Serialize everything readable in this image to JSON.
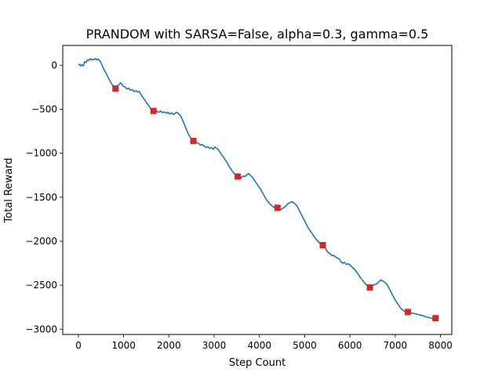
{
  "chart_data": {
    "type": "line",
    "title": "PRANDOM with SARSA=False, alpha=0.3, gamma=0.5",
    "xlabel": "Step Count",
    "ylabel": "Total Reward",
    "xlim": [
      -345,
      8250
    ],
    "ylim": [
      -3060,
      225
    ],
    "xticks": [
      0,
      1000,
      2000,
      3000,
      4000,
      5000,
      6000,
      7000,
      8000
    ],
    "xtick_labels": [
      "0",
      "1000",
      "2000",
      "3000",
      "4000",
      "5000",
      "6000",
      "7000",
      "8000"
    ],
    "yticks": [
      0,
      -500,
      -1000,
      -1500,
      -2000,
      -2500,
      -3000
    ],
    "ytick_labels": [
      "0",
      "−500",
      "−1000",
      "−1500",
      "−2000",
      "−2500",
      "−3000"
    ],
    "grid": false,
    "legend": "none",
    "series": [
      {
        "line_color": "#1f77b4",
        "points": [
          [
            0,
            0
          ],
          [
            40,
            10
          ],
          [
            60,
            -10
          ],
          [
            90,
            5
          ],
          [
            110,
            -5
          ],
          [
            140,
            40
          ],
          [
            170,
            30
          ],
          [
            200,
            60
          ],
          [
            230,
            55
          ],
          [
            260,
            75
          ],
          [
            290,
            60
          ],
          [
            320,
            70
          ],
          [
            350,
            65
          ],
          [
            380,
            75
          ],
          [
            410,
            60
          ],
          [
            440,
            70
          ],
          [
            470,
            50
          ],
          [
            500,
            30
          ],
          [
            540,
            -20
          ],
          [
            580,
            -60
          ],
          [
            620,
            -100
          ],
          [
            660,
            -140
          ],
          [
            700,
            -180
          ],
          [
            740,
            -215
          ],
          [
            780,
            -240
          ],
          [
            810,
            -265
          ],
          [
            840,
            -260
          ],
          [
            870,
            -230
          ],
          [
            900,
            -220
          ],
          [
            930,
            -200
          ],
          [
            960,
            -215
          ],
          [
            990,
            -240
          ],
          [
            1030,
            -245
          ],
          [
            1070,
            -270
          ],
          [
            1110,
            -260
          ],
          [
            1150,
            -285
          ],
          [
            1190,
            -275
          ],
          [
            1230,
            -300
          ],
          [
            1270,
            -290
          ],
          [
            1310,
            -305
          ],
          [
            1350,
            -300
          ],
          [
            1380,
            -330
          ],
          [
            1420,
            -360
          ],
          [
            1460,
            -390
          ],
          [
            1500,
            -420
          ],
          [
            1540,
            -450
          ],
          [
            1580,
            -480
          ],
          [
            1620,
            -505
          ],
          [
            1660,
            -520
          ],
          [
            1700,
            -510
          ],
          [
            1740,
            -525
          ],
          [
            1780,
            -535
          ],
          [
            1820,
            -520
          ],
          [
            1860,
            -540
          ],
          [
            1900,
            -530
          ],
          [
            1940,
            -545
          ],
          [
            1980,
            -535
          ],
          [
            2020,
            -555
          ],
          [
            2060,
            -540
          ],
          [
            2100,
            -560
          ],
          [
            2140,
            -545
          ],
          [
            2180,
            -535
          ],
          [
            2220,
            -555
          ],
          [
            2260,
            -575
          ],
          [
            2300,
            -620
          ],
          [
            2340,
            -670
          ],
          [
            2380,
            -720
          ],
          [
            2420,
            -770
          ],
          [
            2460,
            -810
          ],
          [
            2500,
            -840
          ],
          [
            2540,
            -860
          ],
          [
            2580,
            -870
          ],
          [
            2620,
            -880
          ],
          [
            2660,
            -890
          ],
          [
            2700,
            -910
          ],
          [
            2740,
            -900
          ],
          [
            2780,
            -920
          ],
          [
            2820,
            -935
          ],
          [
            2860,
            -925
          ],
          [
            2900,
            -945
          ],
          [
            2940,
            -935
          ],
          [
            2980,
            -955
          ],
          [
            3010,
            -930
          ],
          [
            3050,
            -940
          ],
          [
            3090,
            -960
          ],
          [
            3130,
            -990
          ],
          [
            3170,
            -1020
          ],
          [
            3210,
            -1050
          ],
          [
            3250,
            -1080
          ],
          [
            3290,
            -1110
          ],
          [
            3330,
            -1150
          ],
          [
            3370,
            -1180
          ],
          [
            3410,
            -1210
          ],
          [
            3450,
            -1235
          ],
          [
            3490,
            -1255
          ],
          [
            3520,
            -1265
          ],
          [
            3560,
            -1275
          ],
          [
            3600,
            -1280
          ],
          [
            3640,
            -1260
          ],
          [
            3680,
            -1265
          ],
          [
            3720,
            -1245
          ],
          [
            3760,
            -1230
          ],
          [
            3800,
            -1250
          ],
          [
            3840,
            -1270
          ],
          [
            3880,
            -1300
          ],
          [
            3920,
            -1330
          ],
          [
            3960,
            -1360
          ],
          [
            4000,
            -1390
          ],
          [
            4040,
            -1420
          ],
          [
            4080,
            -1460
          ],
          [
            4120,
            -1500
          ],
          [
            4160,
            -1530
          ],
          [
            4200,
            -1560
          ],
          [
            4240,
            -1580
          ],
          [
            4280,
            -1600
          ],
          [
            4320,
            -1615
          ],
          [
            4360,
            -1630
          ],
          [
            4400,
            -1640
          ],
          [
            4440,
            -1650
          ],
          [
            4480,
            -1640
          ],
          [
            4520,
            -1625
          ],
          [
            4560,
            -1610
          ],
          [
            4600,
            -1590
          ],
          [
            4640,
            -1570
          ],
          [
            4680,
            -1560
          ],
          [
            4720,
            -1550
          ],
          [
            4760,
            -1565
          ],
          [
            4800,
            -1580
          ],
          [
            4840,
            -1610
          ],
          [
            4880,
            -1650
          ],
          [
            4920,
            -1690
          ],
          [
            4960,
            -1730
          ],
          [
            5000,
            -1770
          ],
          [
            5040,
            -1810
          ],
          [
            5080,
            -1850
          ],
          [
            5120,
            -1880
          ],
          [
            5160,
            -1910
          ],
          [
            5200,
            -1940
          ],
          [
            5240,
            -1970
          ],
          [
            5280,
            -1995
          ],
          [
            5320,
            -2015
          ],
          [
            5360,
            -2035
          ],
          [
            5400,
            -2045
          ],
          [
            5440,
            -2060
          ],
          [
            5480,
            -2100
          ],
          [
            5520,
            -2130
          ],
          [
            5560,
            -2140
          ],
          [
            5600,
            -2165
          ],
          [
            5640,
            -2160
          ],
          [
            5680,
            -2180
          ],
          [
            5720,
            -2190
          ],
          [
            5760,
            -2200
          ],
          [
            5800,
            -2230
          ],
          [
            5840,
            -2250
          ],
          [
            5880,
            -2240
          ],
          [
            5920,
            -2265
          ],
          [
            5960,
            -2255
          ],
          [
            6000,
            -2270
          ],
          [
            6040,
            -2290
          ],
          [
            6080,
            -2310
          ],
          [
            6120,
            -2330
          ],
          [
            6160,
            -2360
          ],
          [
            6200,
            -2390
          ],
          [
            6240,
            -2420
          ],
          [
            6280,
            -2445
          ],
          [
            6320,
            -2470
          ],
          [
            6360,
            -2495
          ],
          [
            6400,
            -2515
          ],
          [
            6440,
            -2525
          ],
          [
            6480,
            -2515
          ],
          [
            6520,
            -2500
          ],
          [
            6560,
            -2490
          ],
          [
            6600,
            -2480
          ],
          [
            6640,
            -2460
          ],
          [
            6680,
            -2440
          ],
          [
            6720,
            -2450
          ],
          [
            6760,
            -2465
          ],
          [
            6800,
            -2480
          ],
          [
            6840,
            -2510
          ],
          [
            6880,
            -2550
          ],
          [
            6920,
            -2590
          ],
          [
            6960,
            -2630
          ],
          [
            7000,
            -2670
          ],
          [
            7040,
            -2700
          ],
          [
            7080,
            -2730
          ],
          [
            7120,
            -2760
          ],
          [
            7160,
            -2780
          ],
          [
            7200,
            -2795
          ],
          [
            7240,
            -2800
          ],
          [
            7280,
            -2805
          ],
          [
            7320,
            -2810
          ],
          [
            7360,
            -2815
          ],
          [
            7400,
            -2820
          ],
          [
            7440,
            -2825
          ],
          [
            7480,
            -2830
          ],
          [
            7520,
            -2835
          ],
          [
            7560,
            -2840
          ],
          [
            7600,
            -2845
          ],
          [
            7640,
            -2850
          ],
          [
            7680,
            -2860
          ],
          [
            7720,
            -2865
          ],
          [
            7760,
            -2870
          ],
          [
            7800,
            -2875
          ],
          [
            7840,
            -2880
          ],
          [
            7880,
            -2885
          ],
          [
            7910,
            -2880
          ]
        ]
      },
      {
        "marker": "square",
        "marker_color": "#d62728",
        "points": [
          [
            820,
            -265
          ],
          [
            1660,
            -520
          ],
          [
            2540,
            -860
          ],
          [
            3520,
            -1265
          ],
          [
            4400,
            -1620
          ],
          [
            5400,
            -2045
          ],
          [
            6440,
            -2525
          ],
          [
            7280,
            -2805
          ],
          [
            7890,
            -2875
          ]
        ]
      }
    ]
  }
}
